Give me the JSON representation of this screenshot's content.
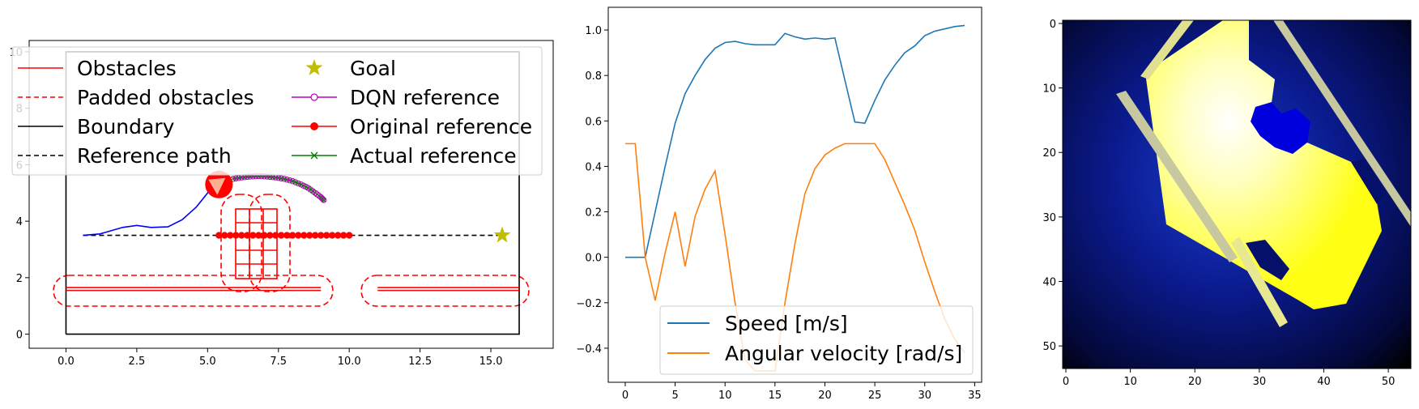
{
  "chart_data": [
    {
      "type": "line",
      "panel": "left",
      "title": "",
      "xlabel": "",
      "ylabel": "",
      "xlim": [
        -1.3,
        17.2
      ],
      "ylim": [
        -0.5,
        10.4
      ],
      "xticks": [
        "0.0",
        "2.5",
        "5.0",
        "7.5",
        "10.0",
        "12.5",
        "15.0"
      ],
      "yticks": [
        "0",
        "2",
        "4",
        "6",
        "8",
        "10"
      ],
      "legend": {
        "placement": "top",
        "columns": 2,
        "entries": [
          {
            "label": "Obstacles",
            "color": "#ff0000",
            "style": "solid"
          },
          {
            "label": "Goal",
            "color": "#bfbf00",
            "style": "star"
          },
          {
            "label": "Padded obstacles",
            "color": "#ff0000",
            "style": "dashed"
          },
          {
            "label": "DQN reference",
            "color": "#bf00bf",
            "style": "circle-open"
          },
          {
            "label": "Boundary",
            "color": "#000000",
            "style": "solid"
          },
          {
            "label": "Original reference",
            "color": "#ff0000",
            "style": "circle-filled"
          },
          {
            "label": "Reference path",
            "color": "#000000",
            "style": "dashed"
          },
          {
            "label": "Actual reference",
            "color": "#008000",
            "style": "x"
          }
        ]
      },
      "boundary": [
        [
          0,
          0
        ],
        [
          16,
          0
        ],
        [
          16,
          10
        ],
        [
          0,
          10
        ],
        [
          0,
          0
        ]
      ],
      "reference_path": {
        "x": [
          0.6,
          15.4
        ],
        "y": [
          3.5,
          3.5
        ]
      },
      "goal": {
        "x": 15.4,
        "y": 3.5
      },
      "original_reference": {
        "x_start": 5.4,
        "x_end": 10.0,
        "count": 24,
        "y": 3.5
      },
      "trajectory": {
        "x": [
          0.6,
          1.2,
          2.0,
          2.5,
          3.0,
          3.6,
          4.1,
          4.6,
          5.0,
          5.4
        ],
        "y": [
          3.5,
          3.55,
          3.78,
          3.85,
          3.78,
          3.8,
          4.05,
          4.5,
          5.0,
          5.4
        ]
      },
      "dqn_reference": {
        "x": [
          5.9,
          6.2,
          6.5,
          6.8,
          7.1,
          7.4,
          7.7,
          8.0,
          8.3,
          8.55,
          8.8,
          9.0,
          9.1
        ],
        "y": [
          5.5,
          5.55,
          5.58,
          5.6,
          5.58,
          5.55,
          5.5,
          5.42,
          5.3,
          5.18,
          5.0,
          4.85,
          4.75
        ]
      },
      "obstacles": [
        {
          "x": [
            0,
            9
          ],
          "y": [
            1.55,
            1.55
          ]
        },
        {
          "x": [
            0,
            9
          ],
          "y": [
            1.65,
            1.65
          ]
        },
        {
          "x": [
            11,
            16
          ],
          "y": [
            1.55,
            1.55
          ]
        },
        {
          "x": [
            11,
            16
          ],
          "y": [
            1.65,
            1.65
          ]
        }
      ],
      "vehicle": {
        "x": 5.4,
        "y": 5.3,
        "color": "#ff0000"
      }
    },
    {
      "type": "line",
      "panel": "middle",
      "title": "",
      "xlabel": "",
      "ylabel": "",
      "xlim": [
        -1.7,
        35.7
      ],
      "ylim": [
        -0.55,
        1.1
      ],
      "xticks": [
        "0",
        "5",
        "10",
        "15",
        "20",
        "25",
        "30",
        "35"
      ],
      "yticks": [
        "−0.4",
        "−0.2",
        "0.0",
        "0.2",
        "0.4",
        "0.6",
        "0.8",
        "1.0"
      ],
      "legend": {
        "placement": "lower left"
      },
      "series": [
        {
          "name": "Speed [m/s]",
          "color": "#1f77b4",
          "x": [
            0,
            1,
            2,
            3,
            4,
            5,
            6,
            7,
            8,
            9,
            10,
            11,
            12,
            13,
            14,
            15,
            16,
            17,
            18,
            19,
            20,
            21,
            22,
            23,
            24,
            25,
            26,
            27,
            28,
            29,
            30,
            31,
            32,
            33,
            34
          ],
          "values": [
            0.0,
            0.0,
            0.0,
            0.2,
            0.4,
            0.59,
            0.72,
            0.8,
            0.87,
            0.92,
            0.945,
            0.95,
            0.94,
            0.935,
            0.935,
            0.935,
            0.985,
            0.97,
            0.96,
            0.965,
            0.96,
            0.965,
            0.78,
            0.595,
            0.59,
            0.69,
            0.78,
            0.845,
            0.9,
            0.93,
            0.975,
            0.995,
            1.005,
            1.015,
            1.02
          ]
        },
        {
          "name": "Angular velocity [rad/s]",
          "color": "#ff7f0e",
          "x": [
            0,
            1,
            2,
            3,
            4,
            5,
            6,
            7,
            8,
            9,
            10,
            11,
            12,
            13,
            14,
            15,
            16,
            17,
            18,
            19,
            20,
            21,
            22,
            23,
            24,
            25,
            26,
            27,
            28,
            29,
            30,
            31,
            32,
            33,
            34
          ],
          "values": [
            0.5,
            0.5,
            0.0,
            -0.19,
            0.02,
            0.2,
            -0.04,
            0.18,
            0.3,
            0.38,
            0.1,
            -0.2,
            -0.45,
            -0.5,
            -0.5,
            -0.5,
            -0.2,
            0.06,
            0.28,
            0.39,
            0.45,
            0.48,
            0.5,
            0.5,
            0.5,
            0.5,
            0.43,
            0.33,
            0.23,
            0.12,
            -0.02,
            -0.15,
            -0.27,
            -0.36,
            -0.42
          ]
        }
      ]
    },
    {
      "type": "heatmap",
      "panel": "right",
      "title": "",
      "xlabel": "",
      "ylabel": "",
      "grid_size": [
        54,
        54
      ],
      "xticks": [
        "0",
        "10",
        "20",
        "30",
        "40",
        "50"
      ],
      "yticks": [
        "0",
        "10",
        "20",
        "30",
        "40",
        "50"
      ],
      "colors": {
        "background": "#000000",
        "glow": "#0a1a8c",
        "map": "#ffff14",
        "highlight": "#ffffee",
        "blob": "#0000dc",
        "edge": "#c8c8a0"
      }
    }
  ]
}
